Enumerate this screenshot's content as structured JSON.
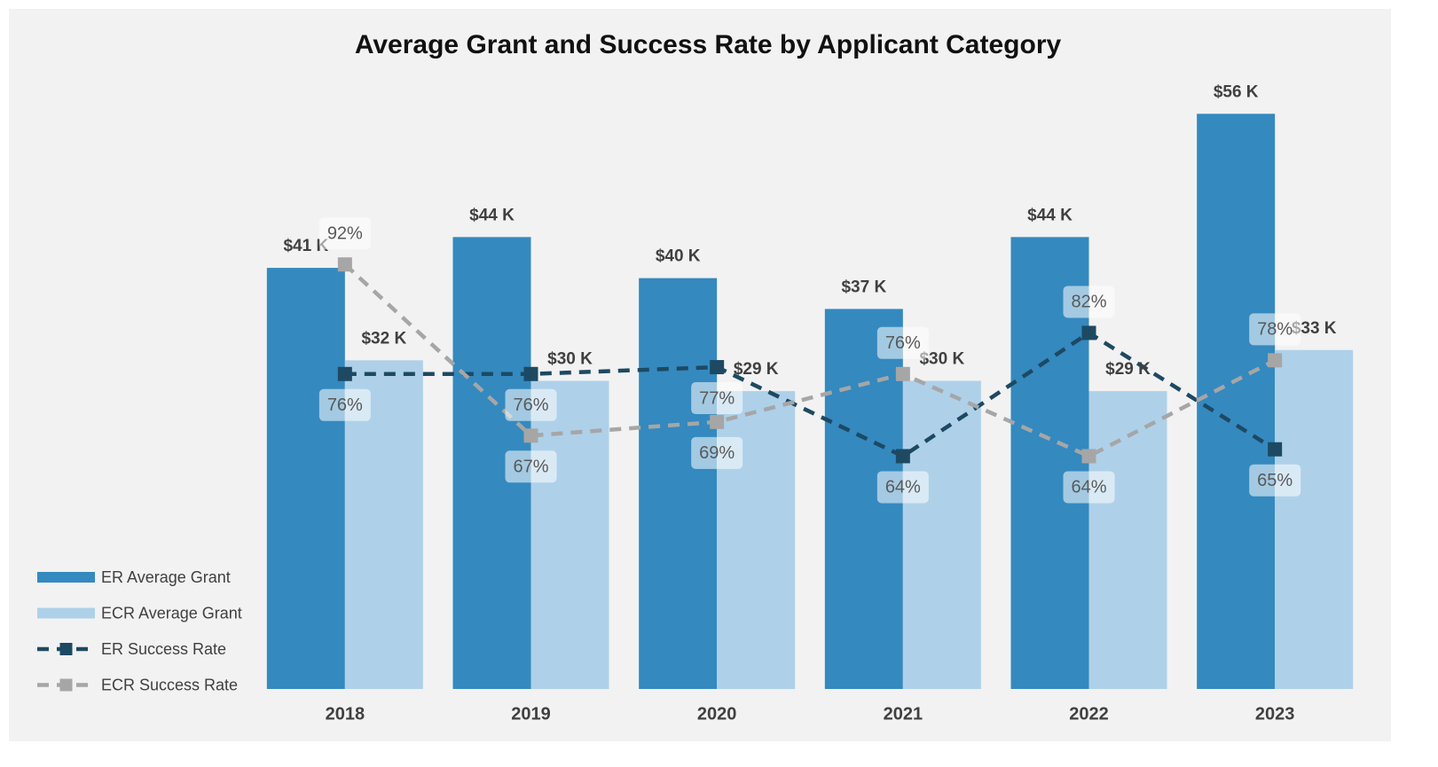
{
  "chart_data": {
    "type": "bar_line_combo",
    "title": "Average Grant and Success Rate by Applicant Category",
    "categories": [
      "2018",
      "2019",
      "2020",
      "2021",
      "2022",
      "2023"
    ],
    "series": [
      {
        "name": "ER Average Grant",
        "type": "bar",
        "color": "#3489bf",
        "values": [
          41,
          44,
          40,
          37,
          44,
          56
        ],
        "value_labels": [
          "$41 K",
          "$44 K",
          "$40 K",
          "$37 K",
          "$44 K",
          "$56 K"
        ]
      },
      {
        "name": "ECR Average Grant",
        "type": "bar",
        "color": "#aed1e9",
        "values": [
          32,
          30,
          29,
          30,
          29,
          33
        ],
        "value_labels": [
          "$32 K",
          "$30 K",
          "$29 K",
          "$30 K",
          "$29 K",
          "$33 K"
        ]
      },
      {
        "name": "ER Success Rate",
        "type": "line",
        "axis": "y2",
        "color": "#1d4963",
        "values": [
          76,
          76,
          77,
          64,
          82,
          65
        ],
        "value_labels": [
          "76%",
          "76%",
          "77%",
          "64%",
          "82%",
          "65%"
        ]
      },
      {
        "name": "ECR Success Rate",
        "type": "line",
        "axis": "y2",
        "color": "#a6a6a6",
        "values": [
          92,
          67,
          69,
          76,
          64,
          78
        ],
        "value_labels": [
          "92%",
          "67%",
          "69%",
          "76%",
          "64%",
          "78%"
        ]
      }
    ],
    "ylim": [
      0,
      60
    ],
    "y2lim": [
      30,
      120
    ],
    "legend": "bottom-left"
  }
}
